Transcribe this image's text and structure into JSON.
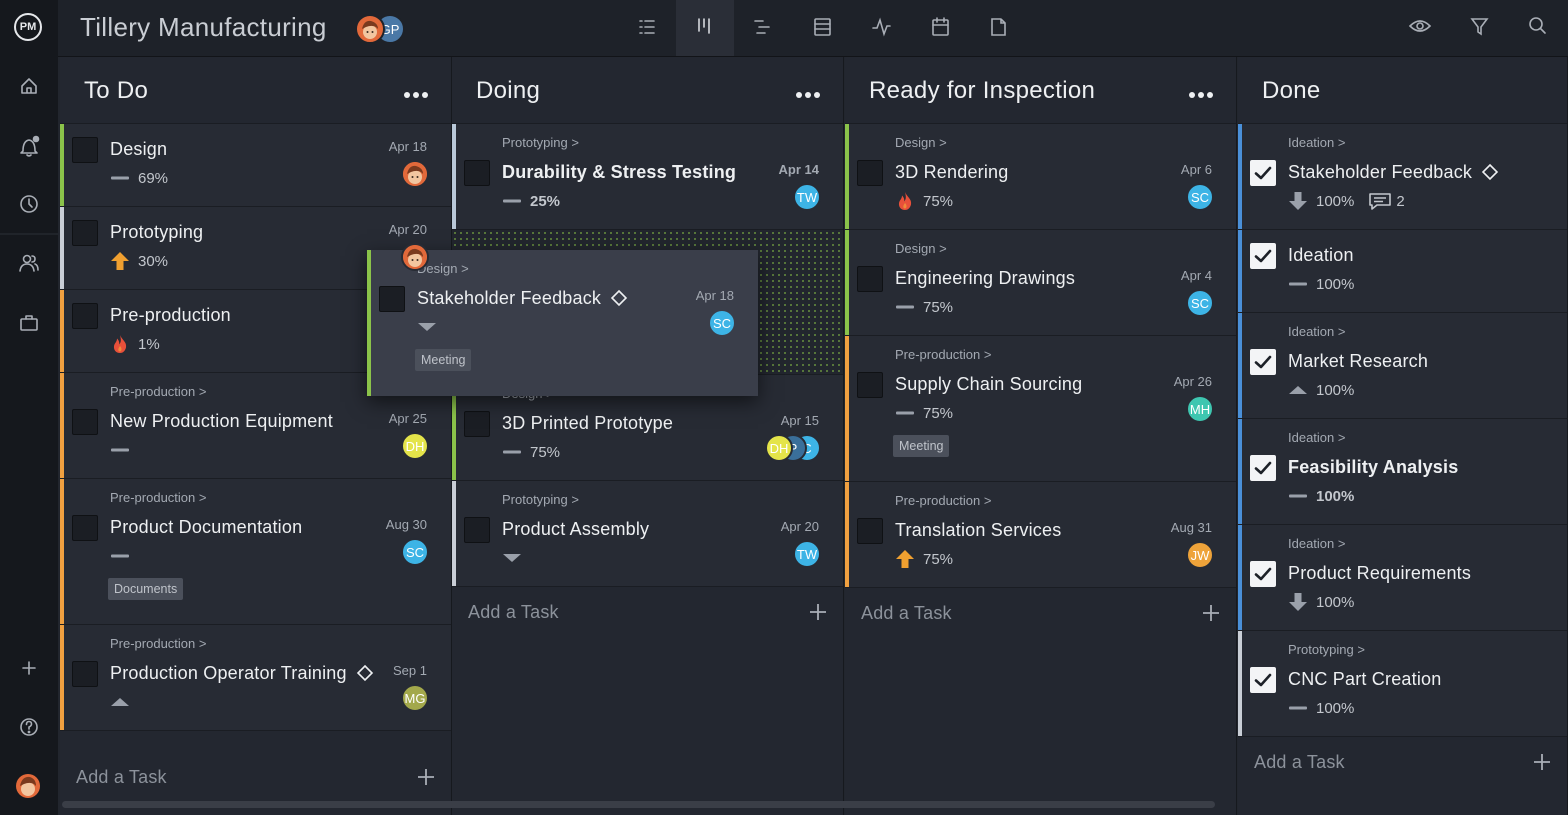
{
  "header": {
    "logo": "PM",
    "title": "Tillery Manufacturing",
    "members": [
      {
        "face": true,
        "color": "#e2693a"
      },
      {
        "initials": "GP",
        "color": "#4a78a6"
      }
    ]
  },
  "columns": [
    {
      "title": "To Do",
      "menu": true,
      "checked": false,
      "add_task": "Add a Task",
      "cards": [
        {
          "name": "Design",
          "date": "Apr 18",
          "progress": "69%",
          "icon": "dash",
          "accent": "#8bc34a",
          "avatars": [
            {
              "face": true,
              "color": "#e2693a"
            }
          ]
        },
        {
          "name": "Prototyping",
          "date": "Apr 20",
          "progress": "30%",
          "icon": "up",
          "accent": "#c9ced6",
          "avatars": [
            {
              "face": true,
              "color": "#e2693a"
            }
          ]
        },
        {
          "name": "Pre-production",
          "progress": "1%",
          "icon": "fire",
          "accent": "#f0a040"
        },
        {
          "breadcrumb": "Pre-production >",
          "name": "New Production Equipment",
          "date": "Apr 25",
          "icon": "dash",
          "accent": "#f0a040",
          "avatars": [
            {
              "initials": "DH",
              "color": "#e4e44a"
            }
          ]
        },
        {
          "breadcrumb": "Pre-production >",
          "name": "Product Documentation",
          "date": "Aug 30",
          "icon": "dash",
          "accent": "#f0a040",
          "tag": "Documents",
          "avatars": [
            {
              "initials": "SC",
              "color": "#3db4e6"
            }
          ]
        },
        {
          "breadcrumb": "Pre-production >",
          "name": "Production Operator Training",
          "milestone": true,
          "date": "Sep 1",
          "icon": "caret-up",
          "accent": "#f0a040",
          "avatars": [
            {
              "initials": "MG",
              "color": "#a3a84b"
            }
          ]
        }
      ]
    },
    {
      "title": "Doing",
      "menu": true,
      "checked": false,
      "add_task": "Add a Task",
      "cards": [
        {
          "breadcrumb": "Prototyping >",
          "name": "Durability & Stress Testing",
          "bold": true,
          "date": "Apr 14",
          "progress": "25%",
          "icon": "dash",
          "accent": "#b9c8d8",
          "avatars": [
            {
              "initials": "TW",
              "color": "#3db4e6"
            }
          ]
        },
        {
          "breadcrumb": "Design >",
          "name": "3D Printed Prototype",
          "date": "Apr 15",
          "progress": "75%",
          "icon": "dash",
          "accent": "#8bc34a",
          "avatars": [
            {
              "initials": "DH",
              "color": "#e4e44a"
            },
            {
              "initials": "P",
              "color": "#3a6f9a"
            },
            {
              "initials": "C",
              "color": "#3db4e6"
            }
          ]
        },
        {
          "breadcrumb": "Prototyping >",
          "name": "Product Assembly",
          "date": "Apr 20",
          "icon": "caret-down",
          "accent": "#c9ced6",
          "avatars": [
            {
              "initials": "TW",
              "color": "#3db4e6"
            }
          ]
        }
      ]
    },
    {
      "title": "Ready for Inspection",
      "menu": true,
      "checked": false,
      "add_task": "Add a Task",
      "cards": [
        {
          "breadcrumb": "Design >",
          "name": "3D Rendering",
          "date": "Apr 6",
          "progress": "75%",
          "icon": "fire",
          "accent": "#8bc34a",
          "avatars": [
            {
              "initials": "SC",
              "color": "#3db4e6"
            }
          ]
        },
        {
          "breadcrumb": "Design >",
          "name": "Engineering Drawings",
          "date": "Apr 4",
          "progress": "75%",
          "icon": "dash",
          "accent": "#8bc34a",
          "avatars": [
            {
              "initials": "SC",
              "color": "#3db4e6"
            }
          ]
        },
        {
          "breadcrumb": "Pre-production >",
          "name": "Supply Chain Sourcing",
          "date": "Apr 26",
          "progress": "75%",
          "icon": "dash",
          "accent": "#f0a040",
          "tag": "Meeting",
          "avatars": [
            {
              "initials": "MH",
              "color": "#3ec6b0"
            }
          ]
        },
        {
          "breadcrumb": "Pre-production >",
          "name": "Translation Services",
          "date": "Aug 31",
          "progress": "75%",
          "icon": "up",
          "accent": "#f0a040",
          "avatars": [
            {
              "initials": "JW",
              "color": "#eea33a"
            }
          ]
        }
      ]
    },
    {
      "title": "Done",
      "menu": false,
      "checked": true,
      "add_task": "Add a Task",
      "cards": [
        {
          "breadcrumb": "Ideation >",
          "name": "Stakeholder Feedback",
          "milestone": true,
          "progress": "100%",
          "icon": "down",
          "comments": "2",
          "accent": "#4a90d9"
        },
        {
          "name": "Ideation",
          "progress": "100%",
          "icon": "dash",
          "accent": "#4a90d9"
        },
        {
          "breadcrumb": "Ideation >",
          "name": "Market Research",
          "progress": "100%",
          "icon": "caret-up",
          "accent": "#4a90d9"
        },
        {
          "breadcrumb": "Ideation >",
          "name": "Feasibility Analysis",
          "bold": true,
          "progress": "100%",
          "icon": "dash",
          "accent": "#4a90d9"
        },
        {
          "breadcrumb": "Ideation >",
          "name": "Product Requirements",
          "progress": "100%",
          "icon": "down",
          "accent": "#4a90d9"
        },
        {
          "breadcrumb": "Prototyping >",
          "name": "CNC Part Creation",
          "progress": "100%",
          "icon": "dash",
          "accent": "#c9ced6"
        }
      ]
    }
  ],
  "dragged_card": {
    "breadcrumb": "Design >",
    "name": "Stakeholder Feedback",
    "milestone": true,
    "date": "Apr 18",
    "icon": "caret-down",
    "tag": "Meeting",
    "accent": "#8bc34a",
    "avatars": [
      {
        "initials": "SC",
        "color": "#3db4e6"
      }
    ]
  }
}
